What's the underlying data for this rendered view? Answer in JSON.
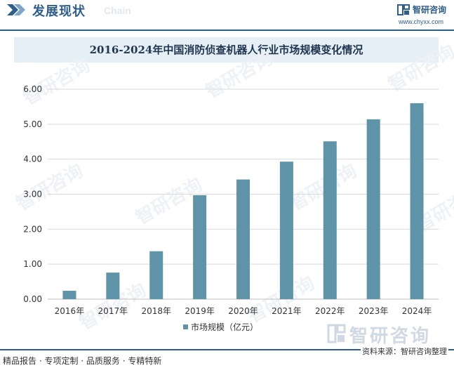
{
  "header": {
    "title": "发展现状",
    "subtitle": "Chain",
    "brand_name": "智研咨询",
    "brand_url": "www.chyxx.com"
  },
  "chart_data": {
    "type": "bar",
    "title": "2016-2024年中国消防侦查机器人行业市场规模变化情况",
    "xlabel": "",
    "ylabel": "",
    "categories": [
      "2016年",
      "2017年",
      "2018年",
      "2019年",
      "2020年",
      "2021年",
      "2022年",
      "2023年",
      "2024年"
    ],
    "series": [
      {
        "name": "市场规模（亿元）",
        "values": [
          0.24,
          0.76,
          1.37,
          2.97,
          3.42,
          3.93,
          4.51,
          5.14,
          5.6
        ]
      }
    ],
    "ylim": [
      0,
      6
    ],
    "yticks": [
      "0.00",
      "1.00",
      "2.00",
      "3.00",
      "4.00",
      "5.00",
      "6.00"
    ],
    "grid": true,
    "legend": "bottom",
    "colors": {
      "bar": "#5f93a8",
      "grid": "#d9d9d9",
      "accent": "#2e5e8c"
    }
  },
  "watermark": {
    "text": "智研咨询"
  },
  "footer": {
    "left": "精品报告 · 专项定制 · 品质服务 · 专精特新",
    "source": "资料来源：智研咨询整理"
  }
}
